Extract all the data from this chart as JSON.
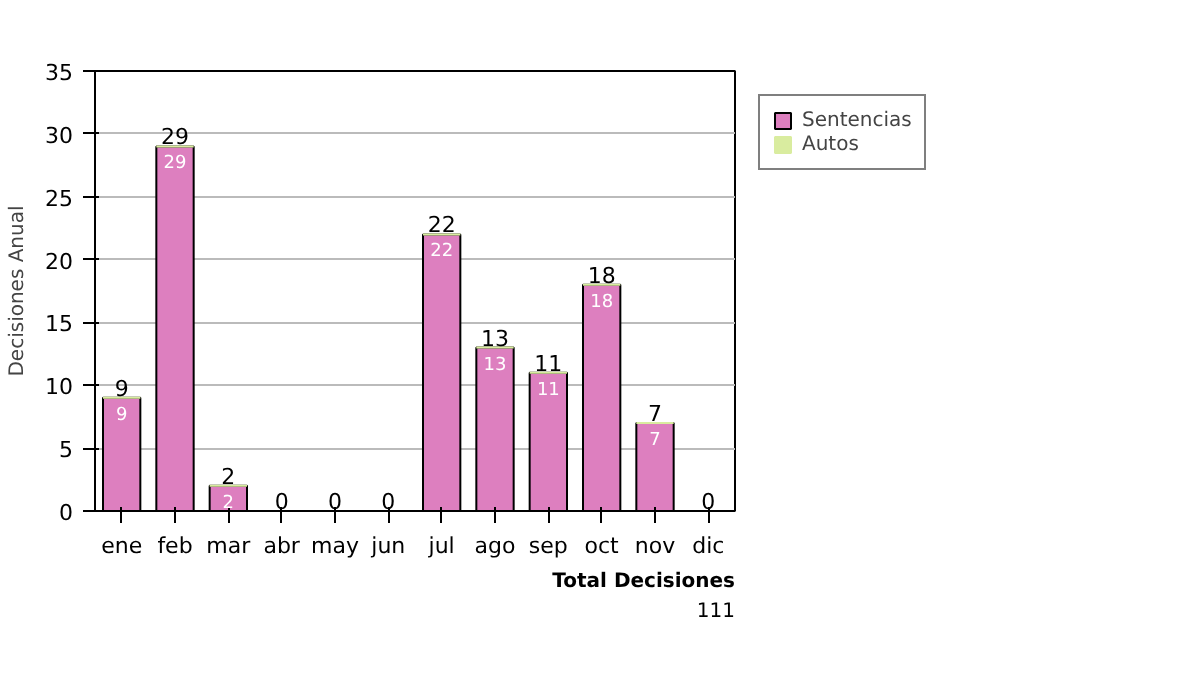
{
  "chart_data": {
    "type": "bar",
    "stacked": true,
    "ylabel": "Decisiones Anual",
    "categories": [
      "ene",
      "feb",
      "mar",
      "abr",
      "may",
      "jun",
      "jul",
      "ago",
      "sep",
      "oct",
      "nov",
      "dic"
    ],
    "series": [
      {
        "name": "Sentencias",
        "color": "#dd7fbf",
        "values": [
          9,
          29,
          2,
          0,
          0,
          0,
          22,
          13,
          11,
          18,
          7,
          0
        ],
        "value_labels": [
          "9",
          "29",
          "2",
          null,
          null,
          null,
          "22",
          "13",
          "11",
          "18",
          "7",
          null
        ]
      },
      {
        "name": "Autos",
        "color": "#d9ec9f",
        "values": [
          0,
          0,
          0,
          0,
          0,
          0,
          0,
          0,
          0,
          0,
          0,
          0
        ]
      }
    ],
    "totals": [
      "9",
      "29",
      "2",
      "0",
      "0",
      "0",
      "22",
      "13",
      "11",
      "18",
      "7",
      "0"
    ],
    "ylim": [
      0,
      35
    ],
    "yticks": [
      0,
      5,
      10,
      15,
      20,
      25,
      30,
      35
    ],
    "grid": "y",
    "legend": "right",
    "annotations": [
      "Total Decisiones",
      "111"
    ]
  }
}
